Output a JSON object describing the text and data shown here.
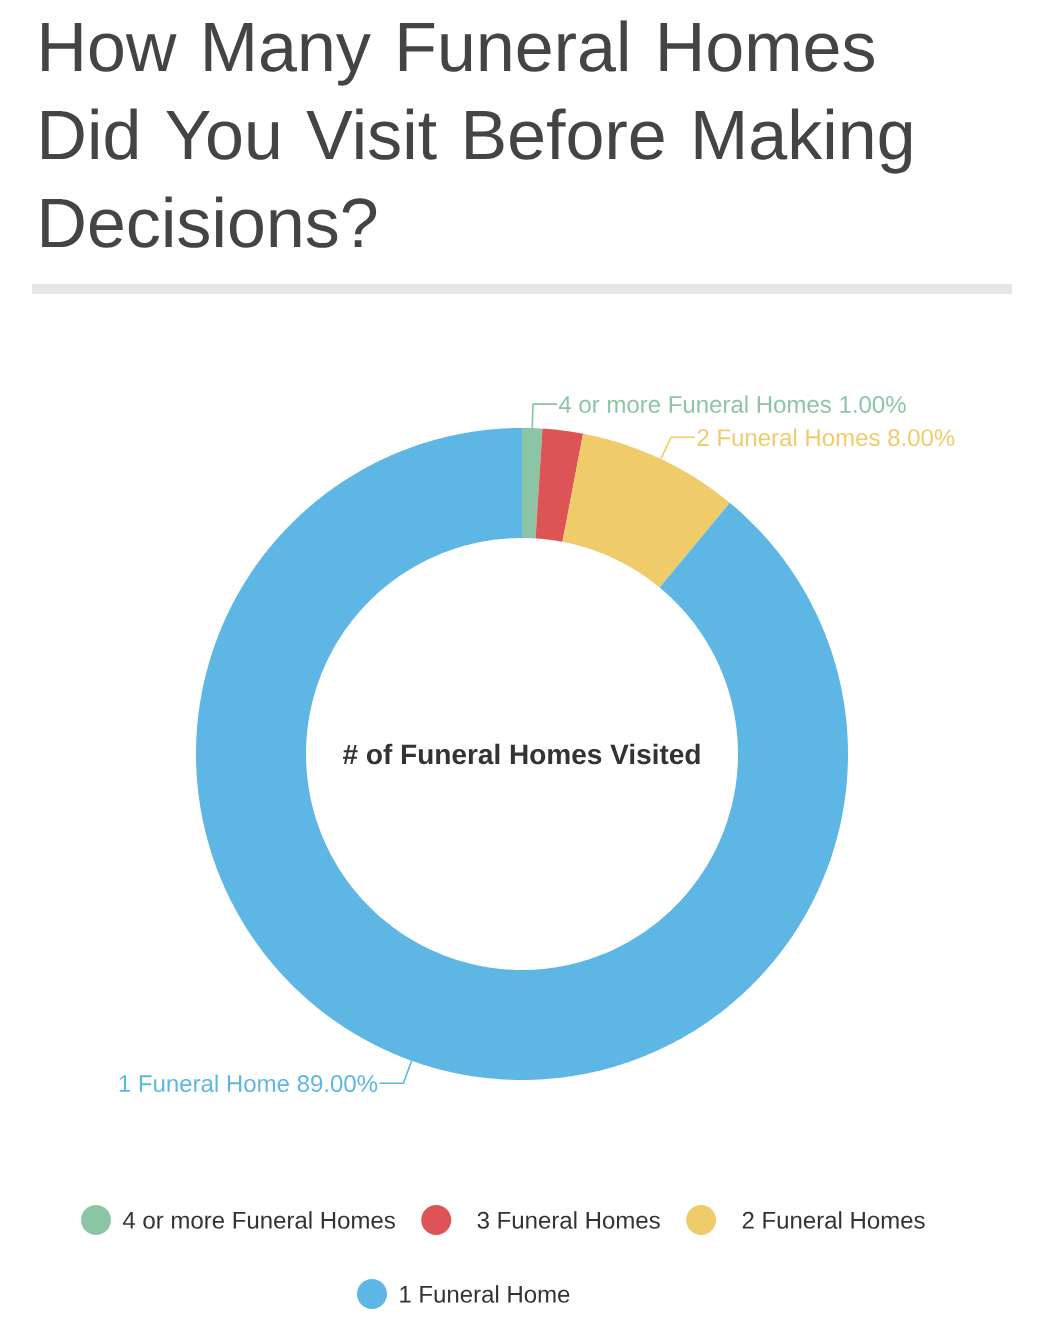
{
  "chart_data": {
    "type": "donut",
    "title": "How Many Funeral Homes Did You Visit Before Making Decisions?",
    "categories": [
      "4 or more Funeral Homes",
      "3 Funeral Homes",
      "2 Funeral Homes",
      "1 Funeral Home"
    ],
    "values": [
      1,
      2,
      8,
      89
    ],
    "colors": [
      "#8cc4a6",
      "#dd5356",
      "#efcb6a",
      "#5eb6e4"
    ],
    "value_labels": [
      "1.00%",
      null,
      "8.00%",
      "89.00%"
    ],
    "annotations": [
      "# of Funeral Homes Visited"
    ],
    "legend": "bottom"
  }
}
